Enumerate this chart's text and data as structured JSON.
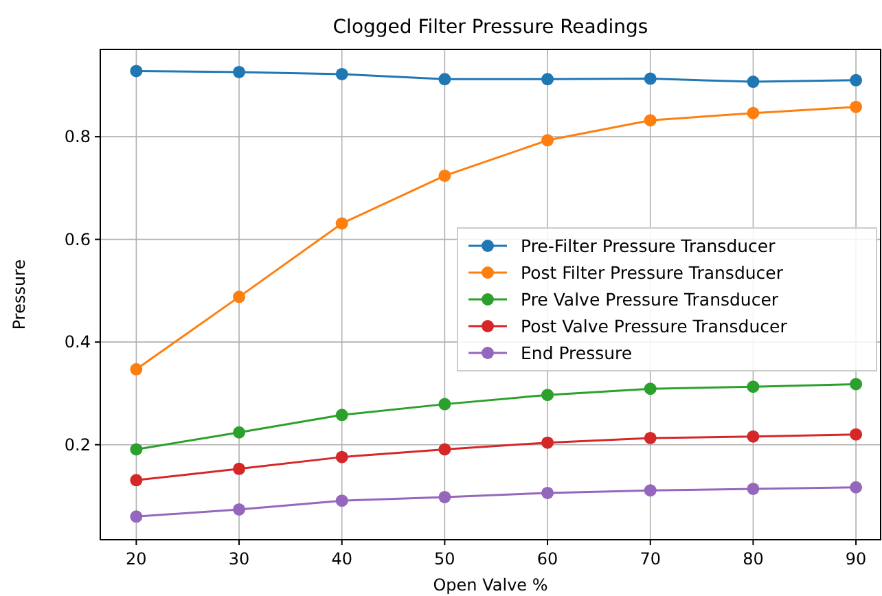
{
  "chart_data": {
    "type": "line",
    "title": "Clogged Filter Pressure Readings",
    "xlabel": "Open Valve %",
    "ylabel": "Pressure",
    "x": [
      20,
      30,
      40,
      50,
      60,
      70,
      80,
      90
    ],
    "series": [
      {
        "name": "Pre-Filter Pressure Transducer",
        "color": "#1f77b4",
        "values": [
          0.928,
          0.926,
          0.922,
          0.912,
          0.912,
          0.913,
          0.907,
          0.91
        ]
      },
      {
        "name": "Post Filter Pressure Transducer",
        "color": "#ff7f0e",
        "values": [
          0.347,
          0.488,
          0.631,
          0.724,
          0.793,
          0.832,
          0.846,
          0.858
        ]
      },
      {
        "name": "Pre Valve Pressure Transducer",
        "color": "#2ca02c",
        "values": [
          0.191,
          0.224,
          0.258,
          0.279,
          0.297,
          0.309,
          0.313,
          0.318
        ]
      },
      {
        "name": "Post Valve Pressure Transducer",
        "color": "#d62728",
        "values": [
          0.131,
          0.153,
          0.176,
          0.191,
          0.204,
          0.213,
          0.216,
          0.22
        ]
      },
      {
        "name": "End Pressure",
        "color": "#9467bd",
        "values": [
          0.06,
          0.074,
          0.091,
          0.098,
          0.106,
          0.111,
          0.114,
          0.117
        ]
      }
    ],
    "xlim": [
      16.5,
      92.4
    ],
    "xticks": [
      20,
      30,
      40,
      50,
      60,
      70,
      80,
      90
    ],
    "ylim": [
      0.015,
      0.97
    ],
    "yticks": [
      0.2,
      0.4,
      0.6,
      0.8
    ],
    "grid": true,
    "legend": "right",
    "marker": "circle",
    "line_style": "solid"
  }
}
